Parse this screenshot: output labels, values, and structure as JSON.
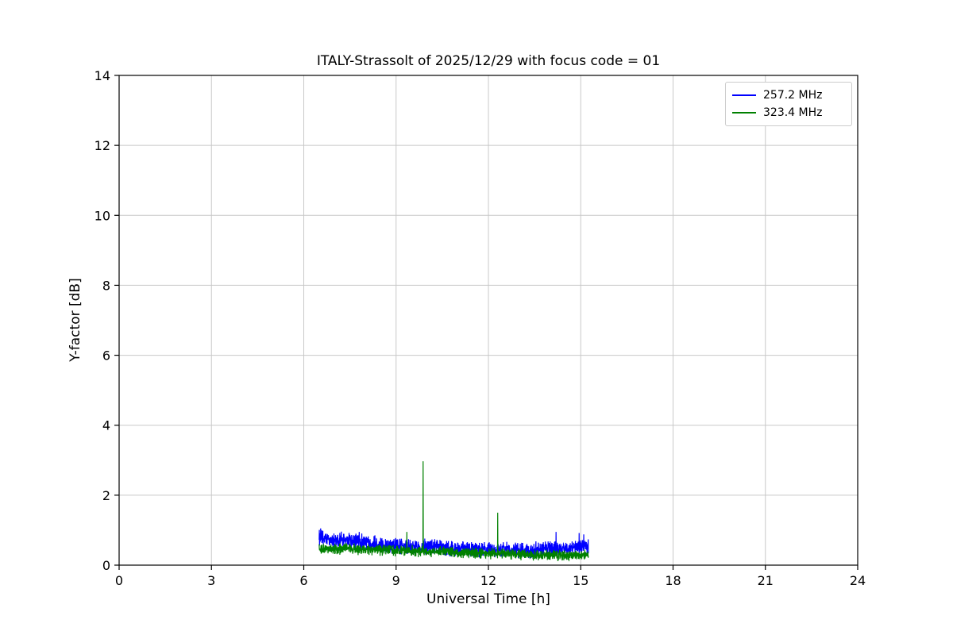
{
  "chart_data": {
    "type": "line",
    "title": "ITALY-Strassolt of 2025/12/29 with focus code = 01",
    "xlabel": "Universal Time [h]",
    "ylabel": "Y-factor [dB]",
    "xlim": [
      0,
      24
    ],
    "ylim": [
      0,
      14
    ],
    "xticks": [
      0,
      3,
      6,
      9,
      12,
      15,
      18,
      21,
      24
    ],
    "yticks": [
      0,
      2,
      4,
      6,
      8,
      10,
      12,
      14
    ],
    "grid": true,
    "grid_color": "#c8c8c8",
    "spine_color": "#000000",
    "legend_position": "top-right",
    "series": [
      {
        "name": "257.2 MHz",
        "color": "#0000ff",
        "x_range": [
          6.5,
          15.25
        ],
        "baseline": [
          [
            6.5,
            0.78
          ],
          [
            7.0,
            0.7
          ],
          [
            7.5,
            0.72
          ],
          [
            8.0,
            0.66
          ],
          [
            8.5,
            0.6
          ],
          [
            9.0,
            0.55
          ],
          [
            9.5,
            0.52
          ],
          [
            10.0,
            0.52
          ],
          [
            10.5,
            0.5
          ],
          [
            11.0,
            0.46
          ],
          [
            11.5,
            0.45
          ],
          [
            12.0,
            0.44
          ],
          [
            12.5,
            0.44
          ],
          [
            13.0,
            0.42
          ],
          [
            13.5,
            0.43
          ],
          [
            14.0,
            0.46
          ],
          [
            14.5,
            0.5
          ],
          [
            15.0,
            0.52
          ],
          [
            15.25,
            0.5
          ]
        ],
        "noise_amplitude": 0.13,
        "spikes": [
          [
            6.55,
            1.05
          ],
          [
            6.62,
            0.98
          ],
          [
            7.8,
            0.95
          ],
          [
            14.2,
            0.95
          ],
          [
            14.95,
            0.92
          ],
          [
            15.1,
            0.88
          ]
        ]
      },
      {
        "name": "323.4 MHz",
        "color": "#008000",
        "x_range": [
          6.5,
          15.25
        ],
        "baseline": [
          [
            6.5,
            0.45
          ],
          [
            7.0,
            0.46
          ],
          [
            7.5,
            0.47
          ],
          [
            8.0,
            0.45
          ],
          [
            8.5,
            0.44
          ],
          [
            9.0,
            0.42
          ],
          [
            9.5,
            0.4
          ],
          [
            10.0,
            0.4
          ],
          [
            10.5,
            0.38
          ],
          [
            11.0,
            0.36
          ],
          [
            11.5,
            0.34
          ],
          [
            12.0,
            0.33
          ],
          [
            12.5,
            0.32
          ],
          [
            13.0,
            0.3
          ],
          [
            13.5,
            0.28
          ],
          [
            14.0,
            0.28
          ],
          [
            14.5,
            0.28
          ],
          [
            15.0,
            0.3
          ],
          [
            15.25,
            0.3
          ]
        ],
        "noise_amplitude": 0.09,
        "spikes": [
          [
            9.35,
            0.95
          ],
          [
            9.88,
            2.97
          ],
          [
            12.3,
            1.5
          ]
        ]
      }
    ]
  }
}
